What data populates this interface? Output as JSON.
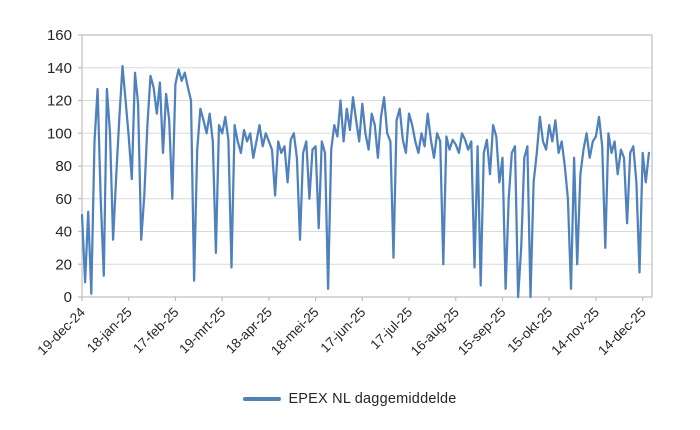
{
  "chart_data": {
    "type": "line",
    "title": "",
    "xlabel": "",
    "ylabel": "",
    "ylim": [
      0,
      160
    ],
    "y_ticks": [
      0,
      20,
      40,
      60,
      80,
      100,
      120,
      140,
      160
    ],
    "grid": "horizontal",
    "x_range_days": [
      0,
      366
    ],
    "x_tick_interval_days": 30,
    "x_tick_labels": [
      "19-dec-24",
      "18-jan-25",
      "17-feb-25",
      "19-mrt-25",
      "18-apr-25",
      "18-mei-25",
      "17-jun-25",
      "17-jul-25",
      "16-aug-25",
      "15-sep-25",
      "15-okt-25",
      "14-nov-25",
      "14-dec-25"
    ],
    "legend": {
      "position": "bottom",
      "label": "EPEX NL daggemiddelde",
      "swatch": "line-icon"
    },
    "colors": {
      "series": "#4f81bd",
      "gridline": "#d9d9d9",
      "axis_line": "#bfbfbf",
      "tick_mark": "#bfbfbf",
      "axis_text": "#262626"
    },
    "series": [
      {
        "name": "EPEX NL daggemiddelde",
        "color": "#4f81bd",
        "x_start_day": 0,
        "x_day_step": 2,
        "values": [
          50,
          9,
          52,
          2,
          95,
          127,
          60,
          13,
          127,
          100,
          35,
          75,
          110,
          141,
          120,
          98,
          72,
          137,
          118,
          35,
          62,
          105,
          135,
          128,
          112,
          131,
          88,
          124,
          108,
          60,
          130,
          139,
          132,
          137,
          128,
          120,
          10,
          90,
          115,
          108,
          100,
          112,
          95,
          27,
          105,
          100,
          110,
          96,
          18,
          105,
          95,
          88,
          102,
          95,
          100,
          85,
          95,
          105,
          92,
          100,
          95,
          90,
          62,
          95,
          88,
          92,
          70,
          96,
          100,
          85,
          35,
          88,
          95,
          60,
          90,
          92,
          42,
          95,
          88,
          5,
          90,
          105,
          98,
          120,
          95,
          115,
          102,
          122,
          108,
          95,
          118,
          100,
          90,
          112,
          105,
          85,
          110,
          122,
          100,
          95,
          24,
          108,
          115,
          96,
          88,
          112,
          105,
          95,
          88,
          100,
          92,
          112,
          96,
          85,
          100,
          95,
          20,
          98,
          90,
          96,
          93,
          88,
          100,
          96,
          90,
          95,
          18,
          92,
          7,
          88,
          96,
          75,
          105,
          98,
          70,
          85,
          5,
          60,
          88,
          92,
          0,
          30,
          85,
          92,
          0,
          70,
          88,
          110,
          95,
          90,
          105,
          95,
          108,
          88,
          95,
          80,
          60,
          5,
          85,
          20,
          75,
          90,
          100,
          85,
          95,
          98,
          110,
          92,
          30,
          100,
          88,
          95,
          75,
          90,
          85,
          45,
          88,
          92,
          70,
          15,
          88,
          70,
          88
        ]
      }
    ]
  }
}
